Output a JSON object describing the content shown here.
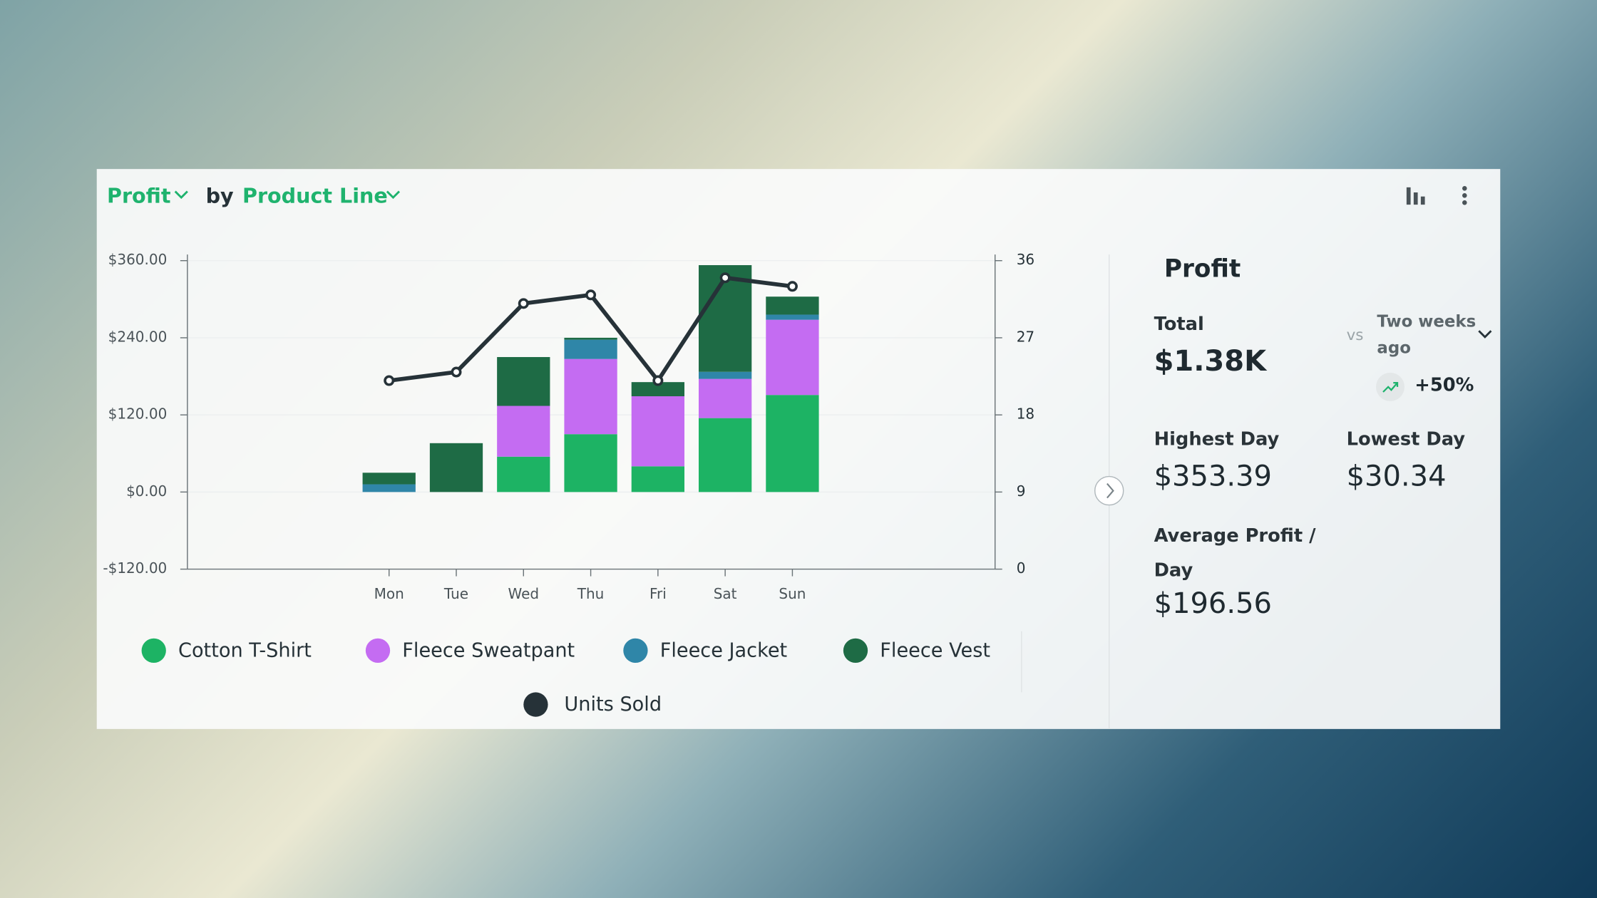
{
  "header": {
    "metric": "Profit",
    "by": "by",
    "group": "Product Line"
  },
  "chart_data": {
    "type": "bar",
    "categories": [
      "Mon",
      "Tue",
      "Wed",
      "Thu",
      "Fri",
      "Sat",
      "Sun"
    ],
    "series": [
      {
        "name": "Cotton T-Shirt",
        "color": "#1db364",
        "values": [
          0,
          0,
          55,
          90,
          40,
          115,
          151
        ]
      },
      {
        "name": "Fleece Sweatpant",
        "color": "#c46cf2",
        "values": [
          0,
          0,
          79,
          117,
          109,
          61,
          117
        ]
      },
      {
        "name": "Fleece Jacket",
        "color": "#2f86a8",
        "values": [
          12,
          0,
          0,
          30,
          0,
          11,
          8
        ]
      },
      {
        "name": "Fleece Vest",
        "color": "#1e6b45",
        "values": [
          18,
          76,
          76,
          3,
          22,
          166,
          28
        ]
      },
      {
        "name": "Units Sold",
        "color": "#263238",
        "type": "line",
        "axis": "y2",
        "values": [
          22,
          23,
          31,
          32,
          22,
          34,
          33
        ]
      }
    ],
    "ylim": [
      -120,
      360
    ],
    "yticks": [
      {
        "value": -120,
        "label": "-$120.00"
      },
      {
        "value": 0,
        "label": "$0.00"
      },
      {
        "value": 120,
        "label": "$120.00"
      },
      {
        "value": 240,
        "label": "$240.00"
      },
      {
        "value": 360,
        "label": "$360.00"
      }
    ],
    "y2lim": [
      0,
      36
    ],
    "y2ticks": [
      0,
      9,
      18,
      27,
      36
    ],
    "grid": true
  },
  "summary": {
    "title": "Profit",
    "total_label": "Total",
    "total": "$1.38K",
    "vs": "vs",
    "compare": "Two weeks ago",
    "change": "+50%",
    "highest_label": "Highest Day",
    "highest": "$353.39",
    "lowest_label": "Lowest Day",
    "lowest": "$30.34",
    "average_label": "Average Profit / Day",
    "average": "$196.56"
  }
}
